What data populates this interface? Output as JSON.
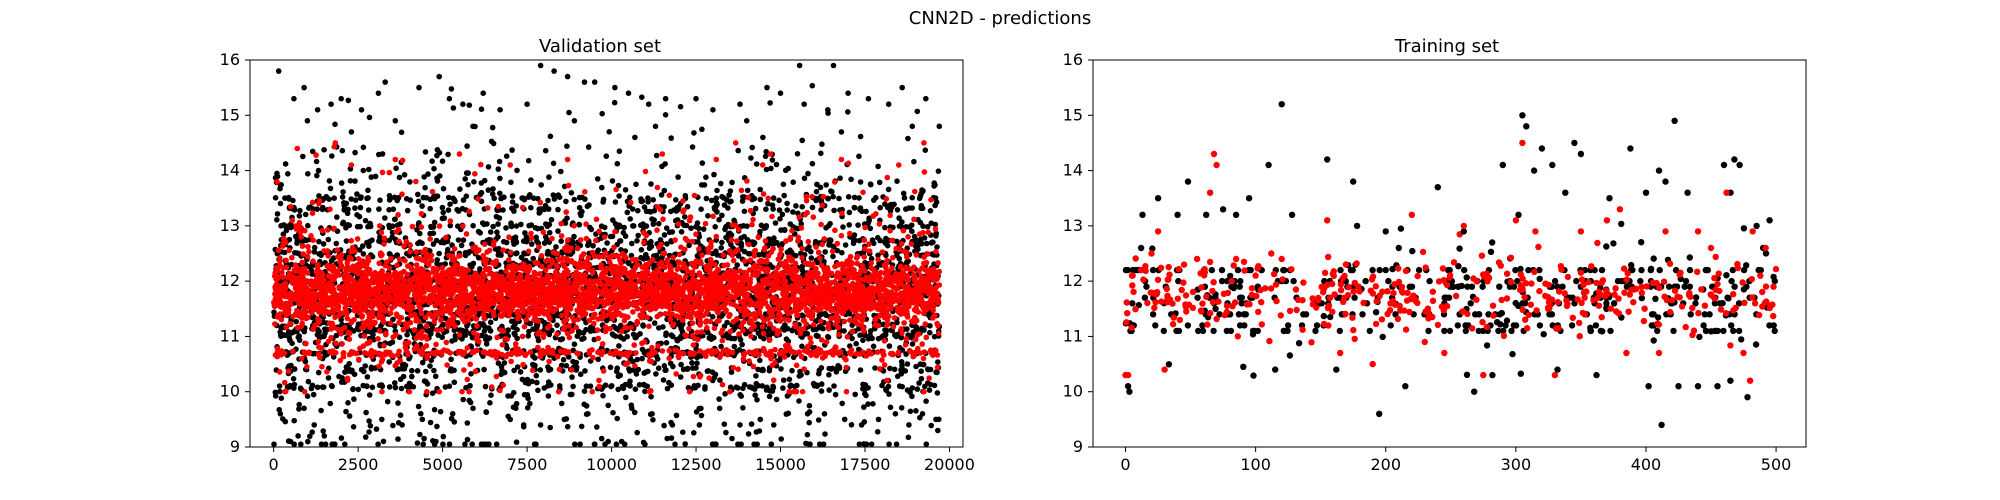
{
  "figure": {
    "suptitle": "CNN2D - predictions"
  },
  "colors": {
    "actual": "#000000",
    "predicted": "#ff0000"
  },
  "chart_data": [
    {
      "type": "scatter",
      "title": "Validation set",
      "xlabel": "",
      "ylabel": "",
      "xlim": [
        -700,
        20400
      ],
      "ylim": [
        9,
        16
      ],
      "xticks": [
        0,
        2500,
        5000,
        7500,
        10000,
        12500,
        15000,
        17500,
        20000
      ],
      "xtick_labels": [
        "0",
        "2500",
        "5000",
        "7500",
        "10000",
        "12500",
        "15000",
        "17500",
        "20000"
      ],
      "yticks": [
        9,
        10,
        11,
        12,
        13,
        14,
        15,
        16
      ],
      "ytick_labels": [
        "9",
        "10",
        "11",
        "12",
        "13",
        "14",
        "15",
        "16"
      ],
      "grid": false,
      "series": [
        {
          "color": "#000000",
          "points": [
            [
              150,
              15.8
            ],
            [
              600,
              15.3
            ],
            [
              900,
              15.5
            ],
            [
              1300,
              15.1
            ],
            [
              1700,
              15.2
            ],
            [
              2000,
              15.3
            ],
            [
              2600,
              15.1
            ],
            [
              3100,
              15.4
            ],
            [
              3300,
              15.6
            ],
            [
              4300,
              15.5
            ],
            [
              4900,
              15.7
            ],
            [
              5200,
              15.3
            ],
            [
              5600,
              15.2
            ],
            [
              6200,
              15.4
            ],
            [
              6700,
              15.1
            ],
            [
              7500,
              15.2
            ],
            [
              7900,
              15.9
            ],
            [
              8300,
              15.8
            ],
            [
              8700,
              15.7
            ],
            [
              9200,
              15.6
            ],
            [
              9500,
              15.6
            ],
            [
              10100,
              15.5
            ],
            [
              10500,
              15.4
            ],
            [
              11100,
              15.2
            ],
            [
              11600,
              15.3
            ],
            [
              12500,
              15.3
            ],
            [
              13000,
              15.1
            ],
            [
              13800,
              15.2
            ],
            [
              14600,
              15.5
            ],
            [
              15000,
              15.4
            ],
            [
              15700,
              15.2
            ],
            [
              16400,
              15.1
            ],
            [
              17000,
              15.4
            ],
            [
              17600,
              15.3
            ],
            [
              18200,
              15.2
            ],
            [
              18600,
              15.5
            ],
            [
              19300,
              15.3
            ],
            [
              19700,
              14.8
            ],
            [
              1000,
              14.9
            ],
            [
              2300,
              14.7
            ],
            [
              3600,
              14.9
            ],
            [
              5900,
              14.8
            ],
            [
              8900,
              14.9
            ],
            [
              11300,
              14.8
            ],
            [
              14000,
              14.9
            ],
            [
              16800,
              14.7
            ],
            [
              18900,
              14.8
            ],
            [
              200,
              9.6
            ],
            [
              500,
              9.1
            ],
            [
              900,
              9.7
            ],
            [
              1200,
              9.4
            ],
            [
              1500,
              9.2
            ],
            [
              2200,
              9.8
            ],
            [
              3200,
              9.5
            ],
            [
              3800,
              9.4
            ],
            [
              4400,
              9.5
            ],
            [
              4800,
              9.1
            ],
            [
              5300,
              9.6
            ],
            [
              5900,
              9.7
            ],
            [
              6400,
              9.8
            ],
            [
              7000,
              9.5
            ],
            [
              7400,
              9.4
            ],
            [
              7900,
              9.4
            ],
            [
              8600,
              9.5
            ],
            [
              9300,
              9.6
            ],
            [
              9900,
              9.1
            ],
            [
              10300,
              9.1
            ],
            [
              10600,
              9.7
            ],
            [
              11200,
              9.6
            ],
            [
              11800,
              9.4
            ],
            [
              12600,
              9.4
            ],
            [
              13200,
              9.7
            ],
            [
              13800,
              9.4
            ],
            [
              14400,
              9.5
            ],
            [
              14800,
              9.4
            ],
            [
              15800,
              9.6
            ],
            [
              16300,
              9.6
            ],
            [
              16900,
              9.5
            ],
            [
              17400,
              9.4
            ],
            [
              17900,
              9.5
            ],
            [
              18400,
              9.6
            ],
            [
              18800,
              9.4
            ],
            [
              19200,
              9.6
            ],
            [
              19600,
              9.5
            ]
          ]
        },
        {
          "color": "#ff0000",
          "points": [
            [
              700,
              14.4
            ],
            [
              2300,
              14.1
            ],
            [
              3600,
              14.2
            ],
            [
              5500,
              14.3
            ],
            [
              7000,
              14.1
            ],
            [
              8700,
              14.2
            ],
            [
              11500,
              14.3
            ],
            [
              13100,
              14.2
            ],
            [
              14700,
              14.3
            ],
            [
              16800,
              14.2
            ],
            [
              18500,
              14.1
            ]
          ]
        }
      ]
    },
    {
      "type": "scatter",
      "title": "Training set",
      "xlabel": "",
      "ylabel": "",
      "xlim": [
        -25,
        523
      ],
      "ylim": [
        9,
        16
      ],
      "xticks": [
        0,
        100,
        200,
        300,
        400,
        500
      ],
      "xtick_labels": [
        "0",
        "100",
        "200",
        "300",
        "400",
        "500"
      ],
      "yticks": [
        9,
        10,
        11,
        12,
        13,
        14,
        15,
        16
      ],
      "ytick_labels": [
        "9",
        "10",
        "11",
        "12",
        "13",
        "14",
        "15",
        "16"
      ],
      "grid": false,
      "series": [
        {
          "color": "#000000",
          "points": [
            [
              2,
              10.1
            ],
            [
              3,
              10.0
            ],
            [
              8,
              12.2
            ],
            [
              12,
              12.6
            ],
            [
              25,
              13.5
            ],
            [
              40,
              13.2
            ],
            [
              48,
              13.8
            ],
            [
              62,
              13.2
            ],
            [
              75,
              13.3
            ],
            [
              85,
              13.2
            ],
            [
              95,
              13.5
            ],
            [
              110,
              14.1
            ],
            [
              115,
              10.4
            ],
            [
              120,
              15.2
            ],
            [
              128,
              13.2
            ],
            [
              155,
              14.2
            ],
            [
              162,
              10.4
            ],
            [
              175,
              13.8
            ],
            [
              178,
              13.0
            ],
            [
              195,
              9.6
            ],
            [
              200,
              12.9
            ],
            [
              210,
              12.6
            ],
            [
              215,
              10.1
            ],
            [
              240,
              13.7
            ],
            [
              260,
              12.9
            ],
            [
              268,
              10.0
            ],
            [
              282,
              10.3
            ],
            [
              290,
              14.1
            ],
            [
              302,
              13.2
            ],
            [
              305,
              15.0
            ],
            [
              308,
              14.8
            ],
            [
              314,
              14.0
            ],
            [
              320,
              14.4
            ],
            [
              328,
              14.1
            ],
            [
              332,
              10.4
            ],
            [
              338,
              13.6
            ],
            [
              345,
              14.5
            ],
            [
              350,
              14.3
            ],
            [
              362,
              10.3
            ],
            [
              372,
              13.5
            ],
            [
              388,
              14.4
            ],
            [
              400,
              13.6
            ],
            [
              402,
              10.1
            ],
            [
              410,
              14.0
            ],
            [
              412,
              9.4
            ],
            [
              415,
              13.8
            ],
            [
              422,
              14.9
            ],
            [
              425,
              10.1
            ],
            [
              432,
              13.6
            ],
            [
              440,
              10.1
            ],
            [
              455,
              10.1
            ],
            [
              460,
              14.1
            ],
            [
              465,
              13.6
            ],
            [
              468,
              14.2
            ],
            [
              472,
              14.1
            ],
            [
              478,
              9.9
            ],
            [
              485,
              13.0
            ],
            [
              490,
              12.6
            ],
            [
              495,
              13.1
            ]
          ]
        },
        {
          "color": "#ff0000",
          "points": [
            [
              0,
              10.3
            ],
            [
              2,
              10.3
            ],
            [
              5,
              12.1
            ],
            [
              12,
              12.2
            ],
            [
              20,
              12.5
            ],
            [
              25,
              12.9
            ],
            [
              30,
              10.4
            ],
            [
              45,
              12.3
            ],
            [
              55,
              12.4
            ],
            [
              65,
              13.6
            ],
            [
              68,
              14.3
            ],
            [
              70,
              14.1
            ],
            [
              85,
              12.4
            ],
            [
              100,
              12.1
            ],
            [
              112,
              12.5
            ],
            [
              120,
              12.4
            ],
            [
              155,
              13.1
            ],
            [
              165,
              10.7
            ],
            [
              190,
              10.5
            ],
            [
              220,
              13.2
            ],
            [
              230,
              10.9
            ],
            [
              245,
              10.7
            ],
            [
              260,
              13.0
            ],
            [
              275,
              10.3
            ],
            [
              300,
              13.1
            ],
            [
              305,
              14.5
            ],
            [
              315,
              12.9
            ],
            [
              330,
              10.3
            ],
            [
              350,
              12.9
            ],
            [
              370,
              13.1
            ],
            [
              380,
              13.3
            ],
            [
              385,
              10.7
            ],
            [
              410,
              10.7
            ],
            [
              415,
              12.9
            ],
            [
              440,
              12.9
            ],
            [
              450,
              12.6
            ],
            [
              462,
              13.6
            ],
            [
              475,
              10.7
            ],
            [
              480,
              10.2
            ],
            [
              482,
              12.9
            ],
            [
              492,
              12.6
            ],
            [
              498,
              11.9
            ]
          ]
        }
      ]
    }
  ]
}
